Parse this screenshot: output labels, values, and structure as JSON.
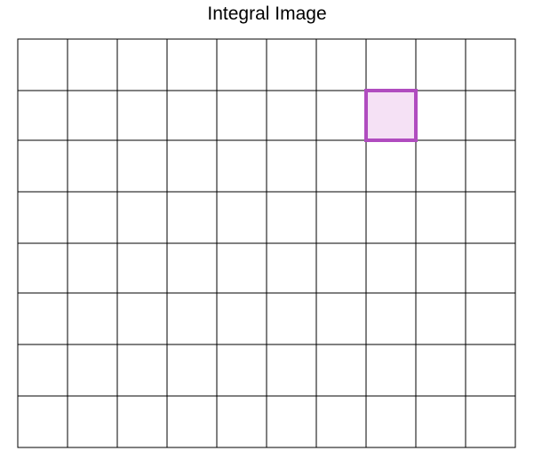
{
  "title": "Integral Image",
  "grid": {
    "rows": 8,
    "cols": 10,
    "line_color": "#000000",
    "highlight": {
      "row": 1,
      "col": 7,
      "fill": "#f5e1f5",
      "border": "#b04cbf"
    }
  }
}
